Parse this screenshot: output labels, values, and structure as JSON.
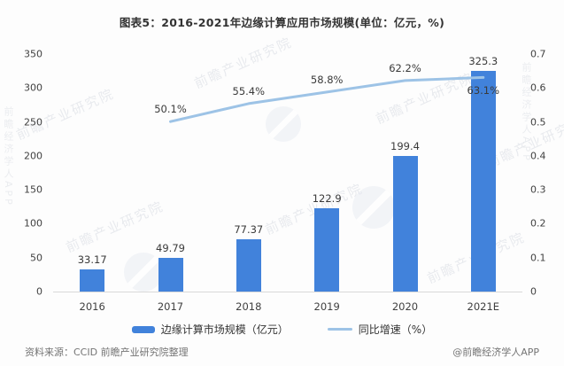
{
  "title": "图表5：2016-2021年边缘计算应用市场规模(单位：亿元，%)",
  "chart_data": {
    "type": "bar",
    "subtype": "bar+line combo, dual axis",
    "categories": [
      "2016",
      "2017",
      "2018",
      "2019",
      "2020",
      "2021E"
    ],
    "series": [
      {
        "name": "边缘计算市场规模（亿元）",
        "type": "bar",
        "axis": "left",
        "values": [
          33.17,
          49.79,
          77.37,
          122.9,
          199.4,
          325.3
        ],
        "labels": [
          "33.17",
          "49.79",
          "77.37",
          "122.9",
          "199.4",
          "325.3"
        ],
        "color": "#4182DB"
      },
      {
        "name": "同比增速（%）",
        "type": "line",
        "axis": "right",
        "values": [
          null,
          0.501,
          0.554,
          0.588,
          0.622,
          0.631
        ],
        "labels": [
          null,
          "50.1%",
          "55.4%",
          "58.8%",
          "62.2%",
          "63.1%"
        ],
        "label_placement": [
          null,
          "above",
          "above",
          "above",
          "above",
          "below"
        ],
        "color": "#9DC3E6"
      }
    ],
    "left_axis": {
      "min": 0,
      "max": 350,
      "ticks": [
        "0",
        "50",
        "100",
        "150",
        "200",
        "250",
        "300",
        "350"
      ]
    },
    "right_axis": {
      "min": 0,
      "max": 0.7,
      "ticks": [
        "0",
        "0.1",
        "0.2",
        "0.3",
        "0.4",
        "0.5",
        "0.6",
        "0.7"
      ]
    },
    "grid": "off",
    "legend_position": "bottom"
  },
  "watermark": {
    "diagonal": "前瞻产业研究院",
    "vertical": "前瞻经济学人APP"
  },
  "footer": {
    "source": "资料来源：CCID 前瞻产业研究院整理",
    "credit": "@前瞻经济学人APP"
  }
}
